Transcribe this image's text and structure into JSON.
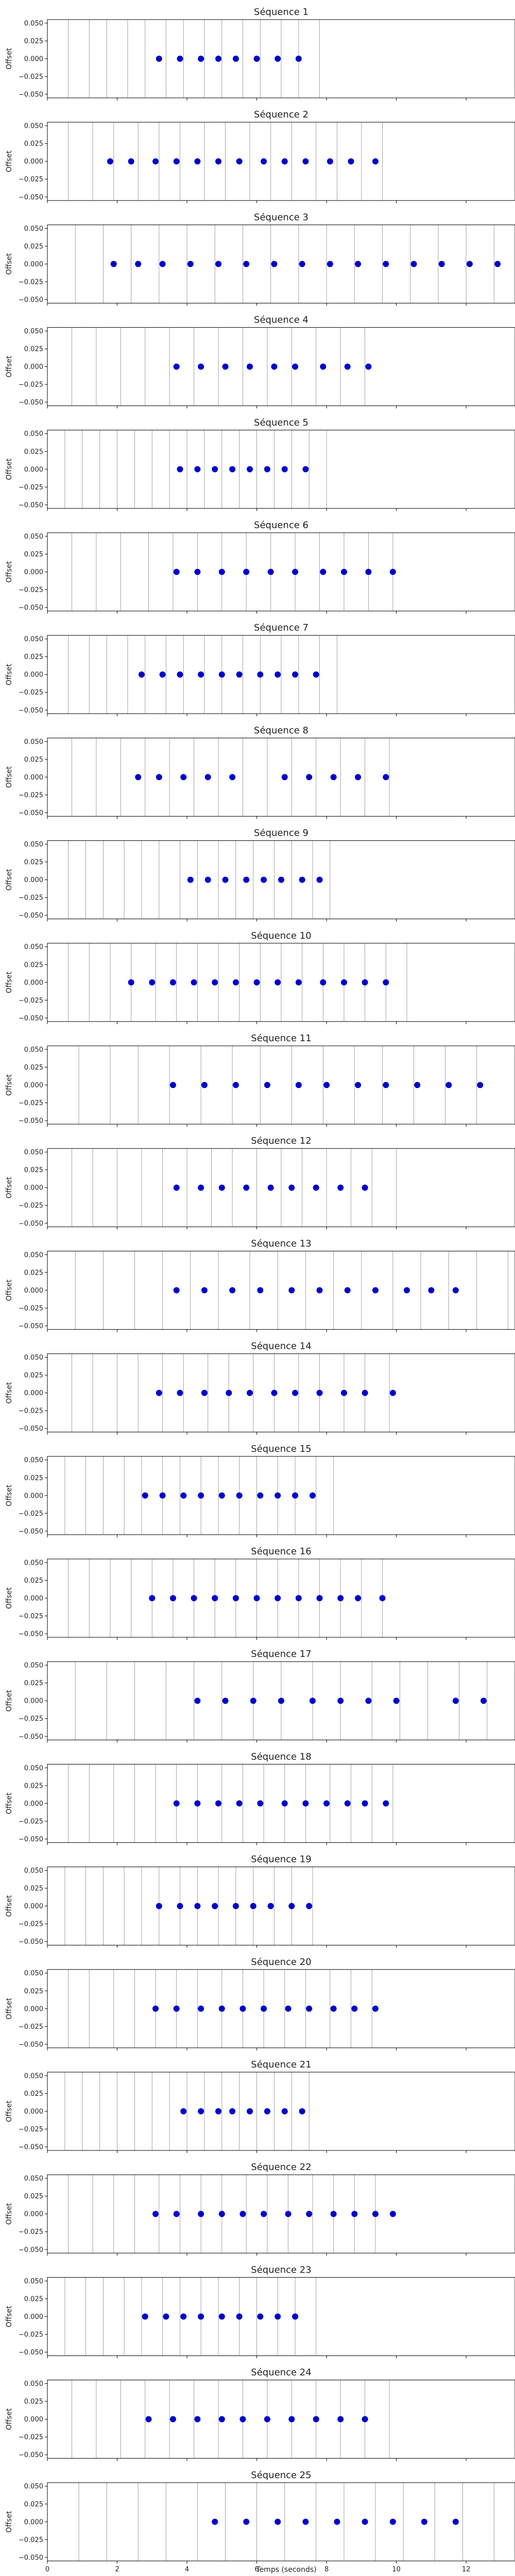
{
  "figure": {
    "xlabel": "Temps (seconds)",
    "marker_color": "#0000cc",
    "grid_color": "#999999"
  },
  "chart_data": {
    "type": "scatter",
    "xlim": [
      0,
      13.4
    ],
    "ylim": [
      -0.055,
      0.055
    ],
    "x_ticks": [
      0,
      2,
      4,
      6,
      8,
      10,
      12
    ],
    "y_ticks": [
      0.05,
      0.025,
      0.0,
      -0.025,
      -0.05
    ],
    "y_tick_labels": [
      "0.050",
      "0.025",
      "0.000",
      "−0.025",
      "−0.050"
    ],
    "xlabel": "Temps (seconds)",
    "ylabel": "Offset",
    "grid": "vertical lines at each beat",
    "panels": [
      {
        "title": "Séquence 1",
        "ylabel": "Offset",
        "x": [
          3.2,
          3.8,
          4.4,
          4.9,
          5.4,
          6.0,
          6.6,
          7.2
        ],
        "y": [
          0,
          0,
          0,
          0,
          0,
          0,
          0,
          0
        ],
        "vlines": [
          0.6,
          1.2,
          1.7,
          2.3,
          2.8,
          3.4,
          3.9,
          4.5,
          5.0,
          5.6,
          6.1,
          6.7,
          7.2,
          7.8
        ]
      },
      {
        "title": "Séquence 2",
        "ylabel": "Offset",
        "x": [
          1.8,
          2.4,
          3.1,
          3.7,
          4.3,
          4.9,
          5.5,
          6.2,
          6.8,
          7.4,
          8.1,
          8.7,
          9.4
        ],
        "y": [
          0,
          0,
          0,
          0,
          0,
          0,
          0,
          0,
          0,
          0,
          0,
          0,
          0
        ],
        "vlines": [
          0.6,
          1.3,
          1.9,
          2.6,
          3.2,
          3.8,
          4.5,
          5.1,
          5.8,
          6.4,
          7.0,
          7.7,
          8.3,
          9.0,
          9.6
        ]
      },
      {
        "title": "Séquence 3",
        "ylabel": "Offset",
        "x": [
          1.9,
          2.6,
          3.3,
          4.1,
          4.9,
          5.7,
          6.5,
          7.3,
          8.1,
          8.9,
          9.7,
          10.5,
          11.3,
          12.1,
          12.9
        ],
        "y": [
          0,
          0,
          0,
          0,
          0,
          0,
          0,
          0,
          0,
          0,
          0,
          0,
          0,
          0,
          0
        ],
        "vlines": [
          0.8,
          1.6,
          2.4,
          3.2,
          4.0,
          4.8,
          5.6,
          6.4,
          7.2,
          8.0,
          8.8,
          9.6,
          10.4,
          11.2,
          12.0,
          12.8
        ]
      },
      {
        "title": "Séquence 4",
        "ylabel": "Offset",
        "x": [
          3.7,
          4.4,
          5.1,
          5.8,
          6.5,
          7.1,
          7.9,
          8.6,
          9.2
        ],
        "y": [
          0,
          0,
          0,
          0,
          0,
          0,
          0,
          0,
          0
        ],
        "vlines": [
          0.7,
          1.4,
          2.1,
          2.8,
          3.5,
          4.2,
          4.9,
          5.6,
          6.3,
          7.0,
          7.7,
          8.4,
          9.1
        ]
      },
      {
        "title": "Séquence 5",
        "ylabel": "Offset",
        "x": [
          3.8,
          4.3,
          4.8,
          5.3,
          5.8,
          6.3,
          6.8,
          7.4
        ],
        "y": [
          0,
          0,
          0,
          0,
          0,
          0,
          0,
          0
        ],
        "vlines": [
          0.5,
          1.0,
          1.5,
          2.0,
          2.5,
          3.0,
          3.5,
          4.0,
          4.5,
          5.0,
          5.5,
          6.0,
          6.5,
          7.0,
          7.5,
          8.0
        ]
      },
      {
        "title": "Séquence 6",
        "ylabel": "Offset",
        "x": [
          3.7,
          4.3,
          5.0,
          5.7,
          6.4,
          7.1,
          7.9,
          8.5,
          9.2,
          9.9
        ],
        "y": [
          0,
          0,
          0,
          0,
          0,
          0,
          0,
          0,
          0,
          0
        ],
        "vlines": [
          0.7,
          1.4,
          2.1,
          2.9,
          3.6,
          4.3,
          5.0,
          5.7,
          6.4,
          7.1,
          7.8,
          8.5,
          9.2,
          9.9
        ]
      },
      {
        "title": "Séquence 7",
        "ylabel": "Offset",
        "x": [
          2.7,
          3.3,
          3.8,
          4.4,
          5.0,
          5.5,
          6.1,
          6.6,
          7.1,
          7.7
        ],
        "y": [
          0,
          0,
          0,
          0,
          0,
          0,
          0,
          0,
          0,
          0
        ],
        "vlines": [
          0.6,
          1.2,
          1.7,
          2.3,
          2.8,
          3.4,
          3.9,
          4.5,
          5.0,
          5.6,
          6.1,
          6.7,
          7.2,
          7.8,
          8.3
        ]
      },
      {
        "title": "Séquence 8",
        "ylabel": "Offset",
        "x": [
          2.6,
          3.2,
          3.9,
          4.6,
          5.3,
          6.8,
          7.5,
          8.2,
          8.9,
          9.7
        ],
        "y": [
          0,
          0,
          0,
          0,
          0,
          0,
          0,
          0,
          0,
          0
        ],
        "vlines": [
          0.7,
          1.4,
          2.1,
          2.8,
          3.5,
          4.2,
          4.9,
          5.6,
          6.3,
          7.0,
          7.7,
          8.4,
          9.1,
          9.8
        ]
      },
      {
        "title": "Séquence 9",
        "ylabel": "Offset",
        "x": [
          4.1,
          4.6,
          5.1,
          5.7,
          6.2,
          6.7,
          7.3,
          7.8
        ],
        "y": [
          0,
          0,
          0,
          0,
          0,
          0,
          0,
          0
        ],
        "vlines": [
          0.6,
          1.1,
          1.6,
          2.2,
          2.7,
          3.2,
          3.8,
          4.3,
          4.9,
          5.4,
          5.9,
          6.5,
          7.0,
          7.6,
          8.1
        ]
      },
      {
        "title": "Séquence 10",
        "ylabel": "Offset",
        "x": [
          2.4,
          3.0,
          3.6,
          4.2,
          4.8,
          5.4,
          6.0,
          6.6,
          7.2,
          7.9,
          8.5,
          9.1,
          9.7
        ],
        "y": [
          0,
          0,
          0,
          0,
          0,
          0,
          0,
          0,
          0,
          0,
          0,
          0,
          0
        ],
        "vlines": [
          0.6,
          1.2,
          1.8,
          2.4,
          3.1,
          3.7,
          4.3,
          4.9,
          5.5,
          6.1,
          6.7,
          7.3,
          7.9,
          8.5,
          9.1,
          9.7,
          10.3
        ]
      },
      {
        "title": "Séquence 11",
        "ylabel": "Offset",
        "x": [
          3.6,
          4.5,
          5.4,
          6.3,
          7.2,
          8.0,
          8.9,
          9.7,
          10.6,
          11.5,
          12.4
        ],
        "y": [
          0,
          0,
          0,
          0,
          0,
          0,
          0,
          0,
          0,
          0,
          0
        ],
        "vlines": [
          0.9,
          1.8,
          2.6,
          3.5,
          4.4,
          5.3,
          6.1,
          7.0,
          7.9,
          8.8,
          9.6,
          10.5,
          11.4,
          12.3
        ]
      },
      {
        "title": "Séquence 12",
        "ylabel": "Offset",
        "x": [
          3.7,
          4.4,
          5.0,
          5.7,
          6.4,
          7.0,
          7.7,
          8.4,
          9.1
        ],
        "y": [
          0,
          0,
          0,
          0,
          0,
          0,
          0,
          0,
          0
        ],
        "vlines": [
          0.7,
          1.3,
          2.0,
          2.7,
          3.3,
          4.0,
          4.7,
          5.3,
          6.0,
          6.7,
          7.3,
          8.0,
          8.7,
          9.3,
          10.0
        ]
      },
      {
        "title": "Séquence 13",
        "ylabel": "Offset",
        "x": [
          3.7,
          4.5,
          5.3,
          6.1,
          7.0,
          7.8,
          8.6,
          9.4,
          10.3,
          11.0,
          11.7
        ],
        "y": [
          0,
          0,
          0,
          0,
          0,
          0,
          0,
          0,
          0,
          0,
          0
        ],
        "vlines": [
          0.8,
          1.6,
          2.5,
          3.3,
          4.1,
          4.9,
          5.8,
          6.6,
          7.4,
          8.2,
          9.0,
          9.9,
          10.7,
          11.5,
          12.3,
          13.2
        ]
      },
      {
        "title": "Séquence 14",
        "ylabel": "Offset",
        "x": [
          3.2,
          3.8,
          4.5,
          5.2,
          5.8,
          6.5,
          7.1,
          7.8,
          8.5,
          9.1,
          9.9
        ],
        "y": [
          0,
          0,
          0,
          0,
          0,
          0,
          0,
          0,
          0,
          0,
          0
        ],
        "vlines": [
          0.7,
          1.3,
          2.0,
          2.6,
          3.3,
          3.9,
          4.6,
          5.2,
          5.9,
          6.5,
          7.2,
          7.8,
          8.5,
          9.1,
          9.8
        ]
      },
      {
        "title": "Séquence 15",
        "ylabel": "Offset",
        "x": [
          2.8,
          3.3,
          3.9,
          4.4,
          5.0,
          5.5,
          6.1,
          6.6,
          7.1,
          7.6
        ],
        "y": [
          0,
          0,
          0,
          0,
          0,
          0,
          0,
          0,
          0,
          0
        ],
        "vlines": [
          0.5,
          1.1,
          1.6,
          2.2,
          2.7,
          3.3,
          3.8,
          4.4,
          4.9,
          5.5,
          6.0,
          6.6,
          7.1,
          7.7,
          8.2
        ]
      },
      {
        "title": "Séquence 16",
        "ylabel": "Offset",
        "x": [
          3.0,
          3.6,
          4.2,
          4.8,
          5.4,
          6.0,
          6.6,
          7.2,
          7.8,
          8.4,
          8.9,
          9.6
        ],
        "y": [
          0,
          0,
          0,
          0,
          0,
          0,
          0,
          0,
          0,
          0,
          0,
          0
        ],
        "vlines": [
          0.6,
          1.2,
          1.8,
          2.4,
          3.0,
          3.6,
          4.2,
          4.8,
          5.4,
          6.0,
          6.6,
          7.2,
          7.8,
          8.4,
          9.0,
          9.6
        ]
      },
      {
        "title": "Séquence 17",
        "ylabel": "Offset",
        "x": [
          4.3,
          5.1,
          5.9,
          6.7,
          7.6,
          8.4,
          9.2,
          10.0,
          11.7,
          12.5
        ],
        "y": [
          0,
          0,
          0,
          0,
          0,
          0,
          0,
          0,
          0,
          0
        ],
        "vlines": [
          0.8,
          1.7,
          2.5,
          3.4,
          4.2,
          5.0,
          5.9,
          6.7,
          7.6,
          8.4,
          9.3,
          10.1,
          10.9,
          11.8,
          12.6
        ]
      },
      {
        "title": "Séquence 18",
        "ylabel": "Offset",
        "x": [
          3.7,
          4.3,
          4.9,
          5.5,
          6.1,
          6.8,
          7.4,
          8.0,
          8.6,
          9.1,
          9.7
        ],
        "y": [
          0,
          0,
          0,
          0,
          0,
          0,
          0,
          0,
          0,
          0,
          0
        ],
        "vlines": [
          0.6,
          1.2,
          1.9,
          2.5,
          3.1,
          3.7,
          4.3,
          5.0,
          5.6,
          6.2,
          6.8,
          7.4,
          8.1,
          8.7,
          9.3,
          9.9
        ]
      },
      {
        "title": "Séquence 19",
        "ylabel": "Offset",
        "x": [
          3.2,
          3.8,
          4.3,
          4.8,
          5.4,
          5.9,
          6.4,
          7.0,
          7.5
        ],
        "y": [
          0,
          0,
          0,
          0,
          0,
          0,
          0,
          0,
          0
        ],
        "vlines": [
          0.5,
          1.1,
          1.6,
          2.2,
          2.7,
          3.2,
          3.8,
          4.3,
          4.9,
          5.4,
          5.9,
          6.5,
          7.0,
          7.6
        ]
      },
      {
        "title": "Séquence 20",
        "ylabel": "Offset",
        "x": [
          3.1,
          3.7,
          4.4,
          5.0,
          5.6,
          6.2,
          6.9,
          7.5,
          8.2,
          8.8,
          9.4
        ],
        "y": [
          0,
          0,
          0,
          0,
          0,
          0,
          0,
          0,
          0,
          0,
          0
        ],
        "vlines": [
          0.6,
          1.2,
          1.9,
          2.5,
          3.1,
          3.7,
          4.3,
          5.0,
          5.6,
          6.2,
          6.8,
          7.4,
          8.1,
          8.7,
          9.3
        ]
      },
      {
        "title": "Séquence 21",
        "ylabel": "Offset",
        "x": [
          3.9,
          4.4,
          4.9,
          5.3,
          5.8,
          6.3,
          6.8,
          7.3
        ],
        "y": [
          0,
          0,
          0,
          0,
          0,
          0,
          0,
          0
        ],
        "vlines": [
          0.5,
          1.0,
          1.5,
          2.0,
          2.5,
          3.0,
          3.5,
          4.0,
          4.5,
          5.0,
          5.5,
          6.0,
          6.5,
          7.0,
          7.5
        ]
      },
      {
        "title": "Séquence 22",
        "ylabel": "Offset",
        "x": [
          3.1,
          3.7,
          4.4,
          5.0,
          5.6,
          6.2,
          6.9,
          7.5,
          8.2,
          8.8,
          9.4,
          9.9
        ],
        "y": [
          0,
          0,
          0,
          0,
          0,
          0,
          0,
          0,
          0,
          0,
          0,
          0
        ],
        "vlines": [
          0.6,
          1.3,
          1.9,
          2.5,
          3.2,
          3.8,
          4.4,
          5.0,
          5.7,
          6.3,
          6.9,
          7.6,
          8.2,
          8.8,
          9.4
        ]
      },
      {
        "title": "Séquence 23",
        "ylabel": "Offset",
        "x": [
          2.8,
          3.4,
          3.9,
          4.4,
          5.0,
          5.5,
          6.1,
          6.6,
          7.1
        ],
        "y": [
          0,
          0,
          0,
          0,
          0,
          0,
          0,
          0,
          0
        ],
        "vlines": [
          0.5,
          1.1,
          1.6,
          2.2,
          2.7,
          3.3,
          3.8,
          4.4,
          4.9,
          5.5,
          6.0,
          6.6,
          7.1,
          7.7
        ]
      },
      {
        "title": "Séquence 24",
        "ylabel": "Offset",
        "x": [
          2.9,
          3.6,
          4.3,
          5.0,
          5.6,
          6.3,
          7.0,
          7.7,
          8.4,
          9.1
        ],
        "y": [
          0,
          0,
          0,
          0,
          0,
          0,
          0,
          0,
          0,
          0
        ],
        "vlines": [
          0.7,
          1.4,
          2.1,
          2.8,
          3.5,
          4.2,
          4.9,
          5.6,
          6.3,
          7.0,
          7.7,
          8.4,
          9.1,
          9.8
        ]
      },
      {
        "title": "Séquence 25",
        "ylabel": "Offset",
        "x": [
          4.8,
          5.7,
          6.6,
          7.4,
          8.3,
          9.1,
          9.9,
          10.8,
          11.7
        ],
        "y": [
          0,
          0,
          0,
          0,
          0,
          0,
          0,
          0,
          0
        ],
        "vlines": [
          0.9,
          1.7,
          2.6,
          3.4,
          4.3,
          5.1,
          6.0,
          6.8,
          7.7,
          8.5,
          9.4,
          10.2,
          11.1,
          11.9,
          12.8
        ]
      }
    ]
  }
}
